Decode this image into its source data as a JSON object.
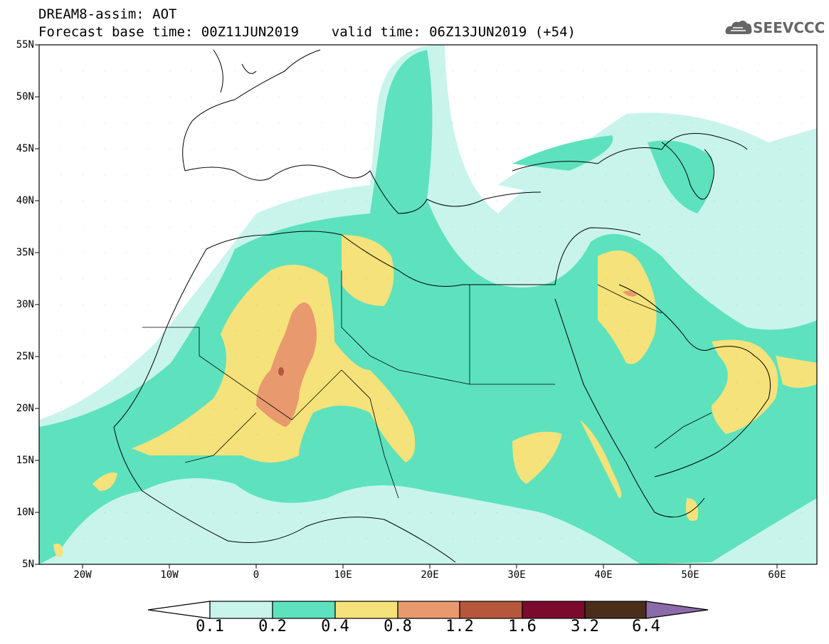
{
  "header": {
    "line1": "DREAM8-assim: AOT",
    "line2": "Forecast base time: 00Z11JUN2019    valid time: 06Z13JUN2019 (+54)",
    "logo_text": "SEEVCCC"
  },
  "axes": {
    "lat_labels": [
      "55N",
      "50N",
      "45N",
      "40N",
      "35N",
      "30N",
      "25N",
      "20N",
      "15N",
      "10N",
      "5N"
    ],
    "lon_labels": [
      "20W",
      "10W",
      "0",
      "10E",
      "20E",
      "30E",
      "40E",
      "50E",
      "60E"
    ]
  },
  "colorbar": {
    "levels": [
      "0.1",
      "0.2",
      "0.4",
      "0.8",
      "1.2",
      "1.6",
      "3.2",
      "6.4"
    ],
    "colors": [
      "#c8f4ec",
      "#5de2bd",
      "#f5e27a",
      "#e89a6e",
      "#b5573c",
      "#7c0a2e",
      "#4a2e1a",
      "#8b6baa"
    ]
  }
}
